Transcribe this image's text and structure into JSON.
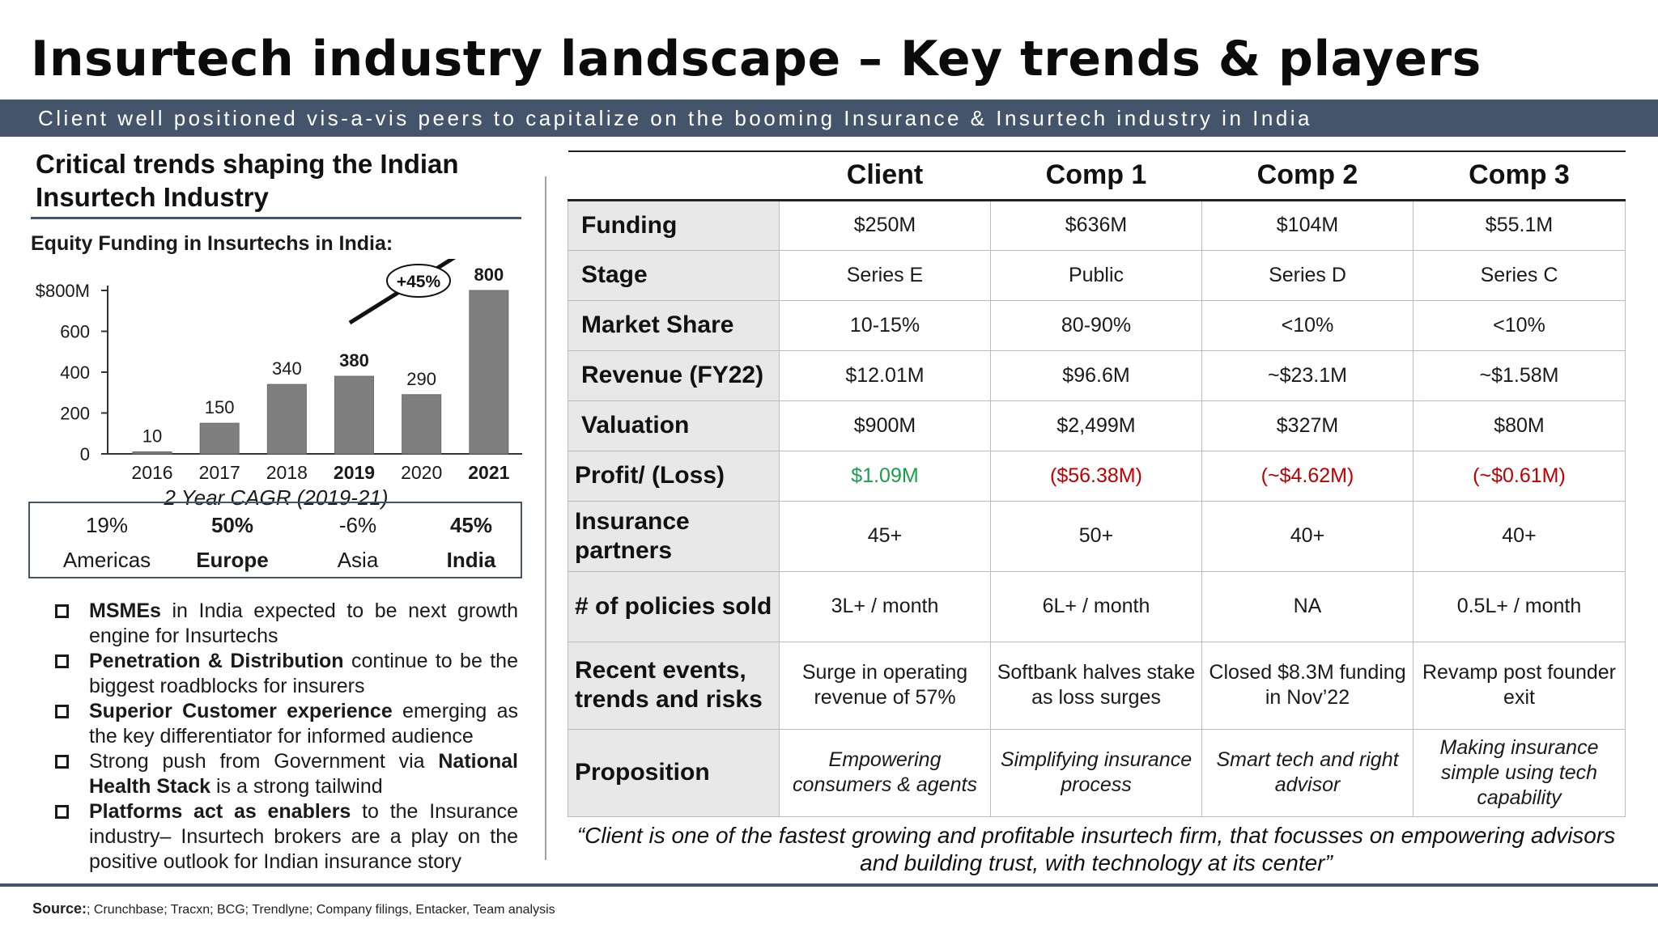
{
  "title": "Insurtech industry landscape – Key trends & players",
  "subtitle": "Client well positioned vis-a-vis peers to capitalize on the booming Insurance & Insurtech industry in India",
  "left": {
    "heading": "Critical trends shaping the Indian Insurtech Industry",
    "chart_label": "Equity Funding in Insurtechs in India:",
    "cagr_caption": "2 Year CAGR (2019-21)",
    "cagr": [
      {
        "value": "19%",
        "region": "Americas",
        "bold": false
      },
      {
        "value": "50%",
        "region": "Europe",
        "bold": true
      },
      {
        "value": "-6%",
        "region": "Asia",
        "bold": false
      },
      {
        "value": "45%",
        "region": "India",
        "bold": true
      }
    ],
    "bullets": [
      {
        "bold": "MSMEs",
        "rest": " in India expected to be next growth engine for Insurtechs",
        "tail_bold": "",
        "tail": ""
      },
      {
        "bold": "Penetration & Distribution",
        "rest": " continue to  be the biggest roadblocks for insurers",
        "tail_bold": "",
        "tail": ""
      },
      {
        "bold": "Superior Customer experience",
        "rest": " emerging as the key differentiator for informed audience",
        "tail_bold": "",
        "tail": ""
      },
      {
        "bold": "",
        "rest": "Strong push from Government via ",
        "tail_bold": "National Health Stack",
        "tail": " is a strong tailwind"
      },
      {
        "bold": "Platforms act as enablers",
        "rest": " to the Insurance industry– Insurtech brokers are a play on the positive outlook for Indian insurance story",
        "tail_bold": "",
        "tail": ""
      }
    ]
  },
  "chart_data": {
    "type": "bar",
    "title": "Equity Funding in Insurtechs in India:",
    "categories": [
      "2016",
      "2017",
      "2018",
      "2019",
      "2020",
      "2021"
    ],
    "values": [
      10,
      150,
      340,
      380,
      290,
      800
    ],
    "data_labels": [
      "10",
      "150",
      "340",
      "380",
      "290",
      "800"
    ],
    "bold_categories": [
      "2019",
      "2021"
    ],
    "y_ticks": [
      0,
      200,
      400,
      600,
      800
    ],
    "y_tick_labels": [
      "0",
      "200",
      "400",
      "600",
      "$800M"
    ],
    "ylim": [
      0,
      800
    ],
    "bar_color": "#7f7f7f",
    "annotation": "+45%",
    "grid": false
  },
  "table": {
    "headers": [
      "",
      "Client",
      "Comp 1",
      "Comp 2",
      "Comp 3"
    ],
    "rows": [
      {
        "label": "Funding",
        "cells": [
          "$250M",
          "$636M",
          "$104M",
          "$55.1M"
        ],
        "style": ""
      },
      {
        "label": "Stage",
        "cells": [
          "Series E",
          "Public",
          "Series D",
          "Series C"
        ],
        "style": ""
      },
      {
        "label": "Market Share",
        "cells": [
          "10-15%",
          "80-90%",
          "<10%",
          "<10%"
        ],
        "style": ""
      },
      {
        "label": "Revenue (FY22)",
        "cells": [
          "$12.01M",
          "$96.6M",
          "~$23.1M",
          "~$1.58M"
        ],
        "style": ""
      },
      {
        "label": "Valuation",
        "cells": [
          "$900M",
          "$2,499M",
          "$327M",
          "$80M"
        ],
        "style": ""
      },
      {
        "label": "Profit/ (Loss)",
        "cells": [
          "$1.09M",
          "($56.38M)",
          "(~$4.62M)",
          "(~$0.61M)"
        ],
        "style": "profit"
      },
      {
        "label": "Insurance partners",
        "cells": [
          "45+",
          "50+",
          "40+",
          "40+"
        ],
        "style": ""
      },
      {
        "label": "# of policies sold",
        "cells": [
          "3L+ / month",
          "6L+ / month",
          "NA",
          "0.5L+ / month"
        ],
        "style": ""
      },
      {
        "label": "Recent events, trends and risks",
        "cells": [
          "Surge in operating revenue of 57%",
          "Softbank halves stake as loss surges",
          "Closed $8.3M funding in Nov’22",
          "Revamp post founder exit"
        ],
        "style": ""
      },
      {
        "label": "Proposition",
        "cells": [
          "Empowering consumers & agents",
          "Simplifying insurance process",
          "Smart tech and right advisor",
          "Making insurance simple using tech capability"
        ],
        "style": "italic"
      }
    ],
    "colors": {
      "positive": "#18a04a",
      "negative": "#c00000"
    }
  },
  "quote": "“Client is one of the fastest growing and profitable insurtech firm, that focusses on empowering advisors and building trust, with technology at its center”",
  "source": {
    "label": "Source:",
    "text": "; Crunchbase; Tracxn; BCG; Trendlyne; Company filings, Entacker, Team analysis"
  }
}
